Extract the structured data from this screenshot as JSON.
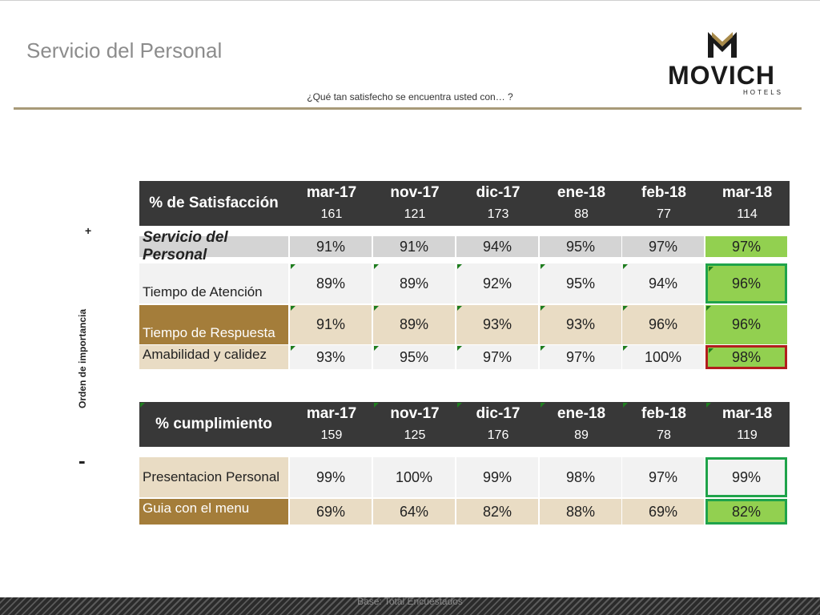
{
  "title": "Servicio del Personal",
  "question": "¿Qué tan satisfecho se encuentra usted con… ?",
  "logo": {
    "name": "MOVICH",
    "sub": "HOTELS"
  },
  "order_axis": {
    "label": "Orden de importancia",
    "plus": "+",
    "minus": "-"
  },
  "satisfaction": {
    "header_label": "% de Satisfacción",
    "months": [
      {
        "label": "mar-17",
        "n": "161"
      },
      {
        "label": "nov-17",
        "n": "121"
      },
      {
        "label": "dic-17",
        "n": "173"
      },
      {
        "label": "ene-18",
        "n": "88"
      },
      {
        "label": "feb-18",
        "n": "77"
      },
      {
        "label": "mar-18",
        "n": "114"
      }
    ],
    "rows": [
      {
        "label": "Servicio del Personal",
        "values": [
          "91%",
          "91%",
          "94%",
          "95%",
          "97%",
          "97%"
        ]
      },
      {
        "label": "Tiempo de Atención",
        "values": [
          "89%",
          "89%",
          "92%",
          "95%",
          "94%",
          "96%"
        ]
      },
      {
        "label": "Tiempo de Respuesta",
        "values": [
          "91%",
          "89%",
          "93%",
          "93%",
          "96%",
          "96%"
        ]
      },
      {
        "label": "Amabilidad y calidez",
        "values": [
          "93%",
          "95%",
          "97%",
          "97%",
          "100%",
          "98%"
        ]
      }
    ]
  },
  "compliance": {
    "header_label": "% cumplimiento",
    "months": [
      {
        "label": "mar-17",
        "n": "159"
      },
      {
        "label": "nov-17",
        "n": "125"
      },
      {
        "label": "dic-17",
        "n": "176"
      },
      {
        "label": "ene-18",
        "n": "89"
      },
      {
        "label": "feb-18",
        "n": "78"
      },
      {
        "label": "mar-18",
        "n": "119"
      }
    ],
    "rows": [
      {
        "label": "Presentacion Personal",
        "values": [
          "99%",
          "100%",
          "99%",
          "98%",
          "97%",
          "99%"
        ]
      },
      {
        "label": "Guia con el menu",
        "values": [
          "69%",
          "64%",
          "82%",
          "88%",
          "69%",
          "82%"
        ]
      }
    ]
  },
  "colors": {
    "header": "#383838",
    "highlight_green": "#92d050",
    "border_green": "#1fa34a",
    "border_red": "#b21d1d",
    "row_brown": "#a47d3a",
    "row_beige": "#e9dcc4"
  },
  "footer": {
    "base": "Base: Total Encuestados"
  }
}
